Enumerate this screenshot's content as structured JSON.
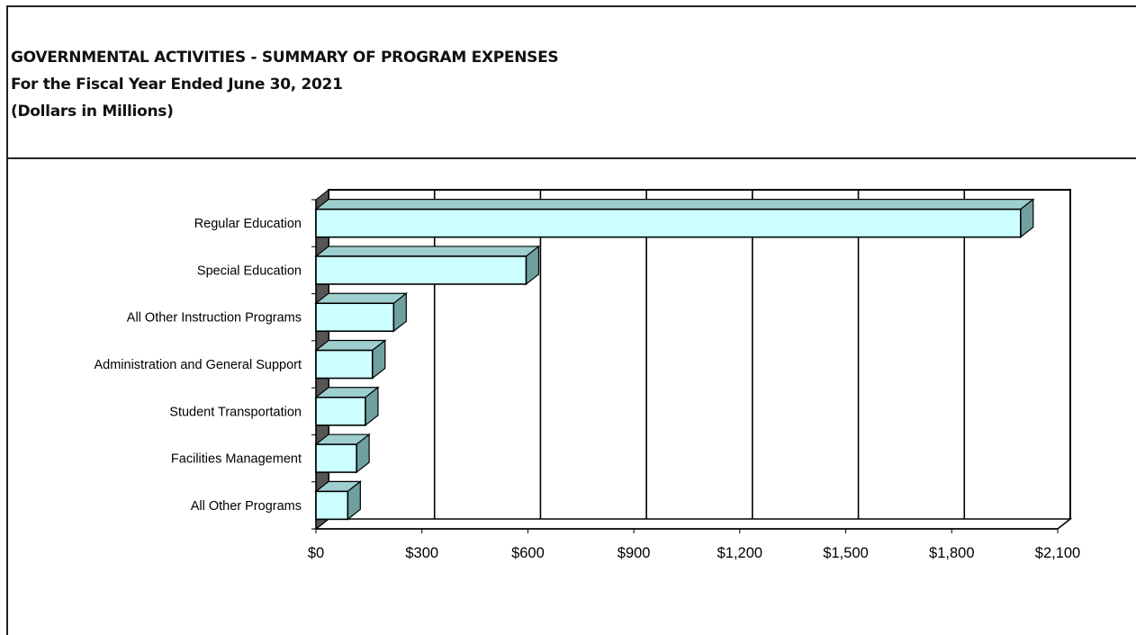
{
  "header": {
    "title": "GOVERNMENTAL ACTIVITIES - SUMMARY OF PROGRAM EXPENSES",
    "subtitle": "For the Fiscal Year Ended June 30, 2021",
    "units": "(Dollars in Millions)"
  },
  "chart_data": {
    "type": "bar",
    "orientation": "horizontal",
    "style": "3d",
    "title": "GOVERNMENTAL ACTIVITIES - SUMMARY OF PROGRAM EXPENSES",
    "subtitle": "For the Fiscal Year Ended June 30, 2021",
    "units": "(Dollars in Millions)",
    "categories": [
      "Regular Education",
      "Special Education",
      "All Other Instruction Programs",
      "Administration and General Support",
      "Student Transportation",
      "Facilities Management",
      "All Other Programs"
    ],
    "values": [
      1995,
      595,
      220,
      160,
      140,
      115,
      90
    ],
    "xlim": [
      0,
      2100
    ],
    "xticks": [
      0,
      300,
      600,
      900,
      1200,
      1500,
      1800,
      2100
    ],
    "xtick_labels": [
      "$0",
      "$300",
      "$600",
      "$900",
      "$1,200",
      "$1,500",
      "$1,800",
      "$2,100"
    ],
    "grid": "vertical",
    "legend": "none",
    "colors": {
      "bar_front": "#ccffff",
      "bar_side": "#6fa0a0",
      "bar_top": "#9ecfcf",
      "floor": "#555555",
      "grid": "#000000"
    }
  }
}
